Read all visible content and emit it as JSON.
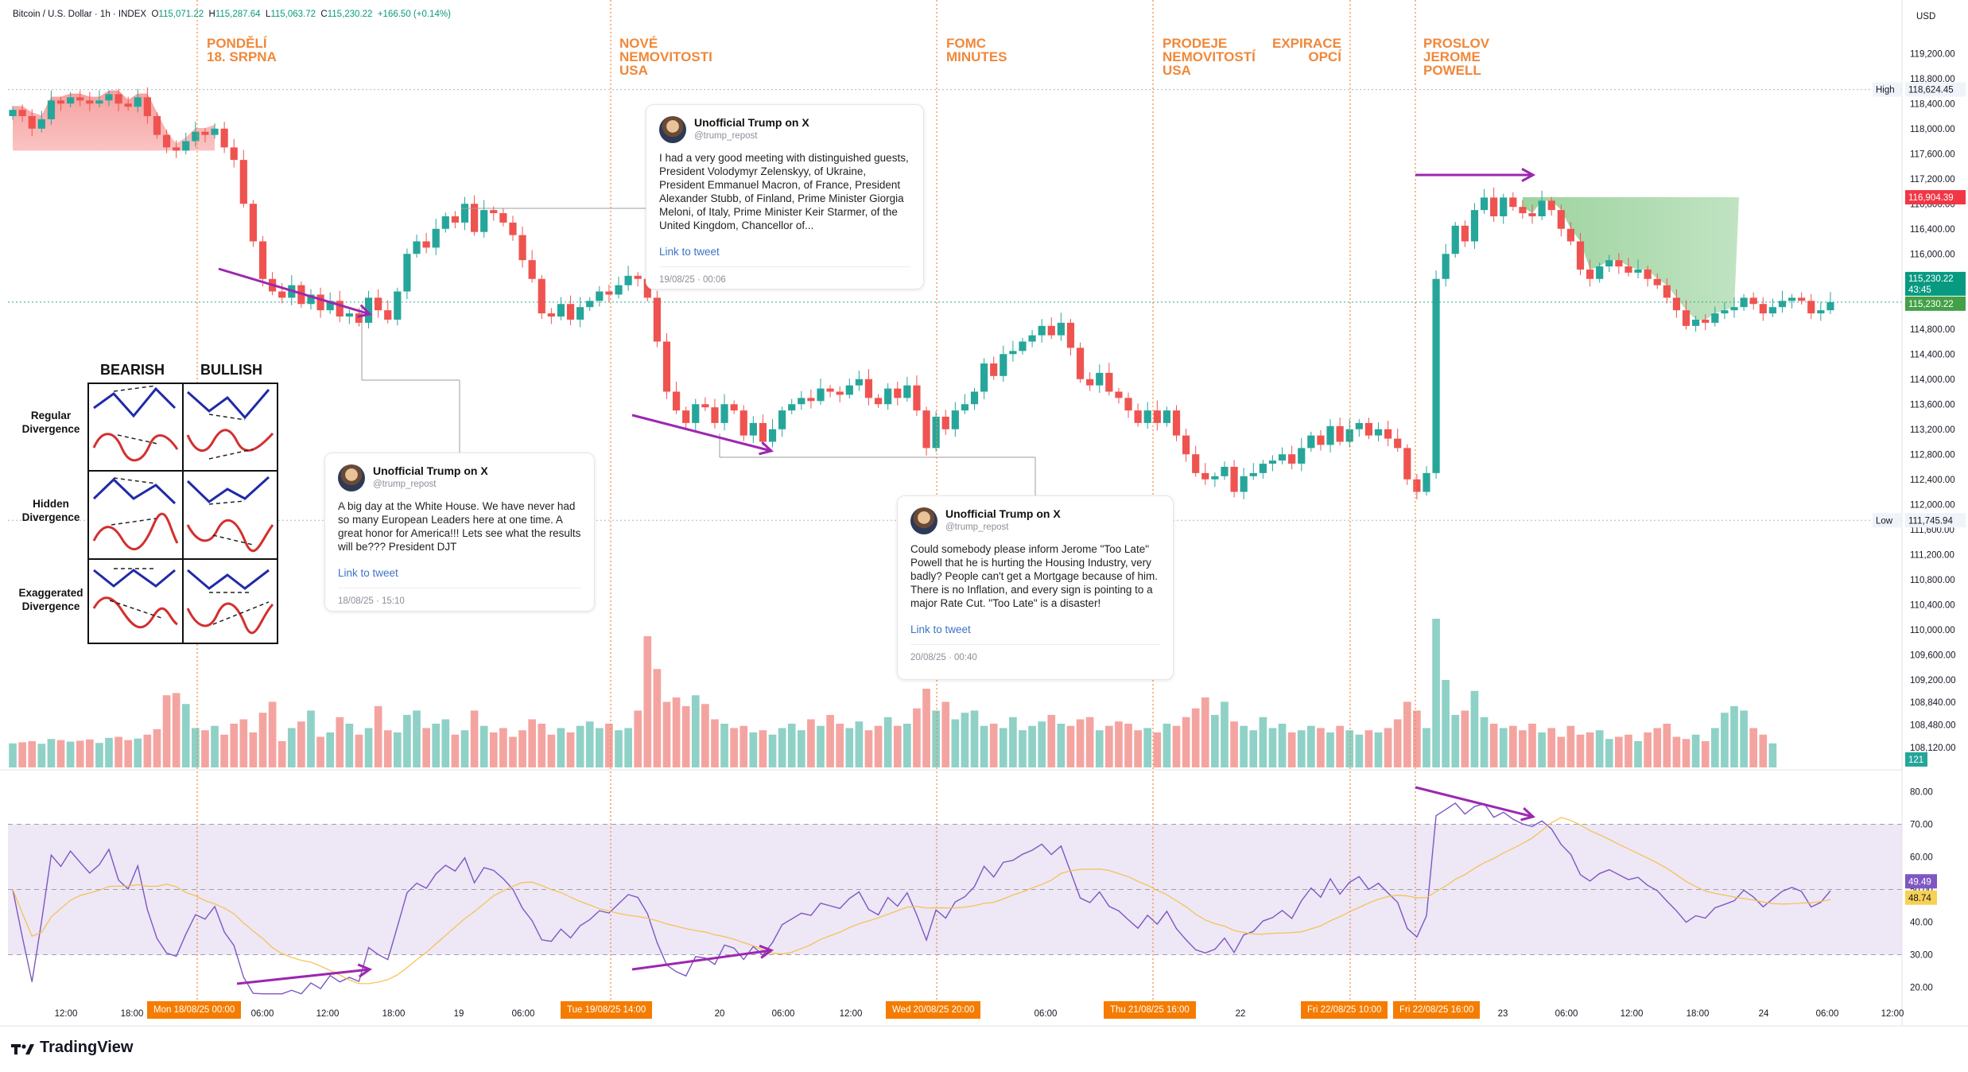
{
  "header": {
    "symbol": "Bitcoin / U.S. Dollar · 1h · INDEX",
    "o_label": "O",
    "o": "115,071.22",
    "h_label": "H",
    "h": "115,287.64",
    "l_label": "L",
    "l": "115,063.72",
    "c_label": "C",
    "c": "115,230.22",
    "change": "+166.50 (+0.14%)"
  },
  "currency": "USD",
  "brand": "TradingView",
  "events": [
    {
      "label": "PONDĚLÍ\n18. SRPNA"
    },
    {
      "label": "NOVÉ\nNEMOVITOSTI\nUSA"
    },
    {
      "label": "FOMC\nMINUTES"
    },
    {
      "label": "PRODEJE\nNEMOVITOSTÍ\nUSA"
    },
    {
      "label": "EXPIRACE\nOPCÍ"
    },
    {
      "label": "PROSLOV\nJEROME\nPOWELL"
    }
  ],
  "time_badges": [
    "Mon 18/08/25   00:00",
    "Tue 19/08/25   14:00",
    "Wed 20/08/25   20:00",
    "Thu 21/08/25   16:00",
    "Fri 22/08/25   10:00",
    "Fri 22/08/25   16:00"
  ],
  "tweets": [
    {
      "name": "Unofficial Trump on X",
      "handle": "@trump_repost",
      "text": "I had a very good meeting with distinguished guests, President Volodymyr Zelenskyy, of Ukraine, President Emmanuel Macron, of France, President Alexander Stubb, of Finland, Prime Minister Giorgia Meloni, of Italy, Prime Minister Keir Starmer, of the United Kingdom, Chancellor of...",
      "link": "Link to tweet",
      "date": "19/08/25 · 00:06"
    },
    {
      "name": "Unofficial Trump on X",
      "handle": "@trump_repost",
      "text": "A big day at the White House. We have never had so many European Leaders here at one time. A great honor for America!!! Lets see what the results will be??? President DJT",
      "link": "Link to tweet",
      "date": "18/08/25 · 15:10"
    },
    {
      "name": "Unofficial Trump on X",
      "handle": "@trump_repost",
      "text": "Could somebody please inform Jerome \"Too Late\" Powell that he is hurting the Housing Industry, very badly? People can't get a Mortgage because of him. There is no Inflation, and every sign is pointing to a major Rate Cut. \"Too Late\" is a disaster!",
      "link": "Link to tweet",
      "date": "20/08/25 · 00:40"
    }
  ],
  "divergence_table": {
    "col_bearish": "BEARISH",
    "col_bullish": "BULLISH",
    "rows": [
      "Regular\nDivergence",
      "Hidden\nDivergence",
      "Exaggerated\nDivergence"
    ]
  },
  "colors": {
    "up": "#26a69a",
    "down": "#ef5350",
    "up_vol": "#8fd1c6",
    "down_vol": "#f4a4a0",
    "event": "#f0883a",
    "rsi": "#7e57c2",
    "rsi_ma": "#f7c04a",
    "arrow": "#9c27b0",
    "rsi_band": "#ede7f6"
  },
  "chart_data": {
    "type": "candlestick",
    "price_axis": {
      "ylim": [
        107800,
        119800
      ],
      "ticks": [
        "119,200.00",
        "118,800.00",
        "118,400.00",
        "118,000.00",
        "117,600.00",
        "117,200.00",
        "116,800.00",
        "116,400.00",
        "116,000.00",
        "115,600.00",
        "115,200.00",
        "114,800.00",
        "114,400.00",
        "114,000.00",
        "113,600.00",
        "113,200.00",
        "112,800.00",
        "112,400.00",
        "112,000.00",
        "111,600.00",
        "111,200.00",
        "110,800.00",
        "110,400.00",
        "110,000.00",
        "109,600.00",
        "109,200.00",
        "108,840.00",
        "108,480.00",
        "108,120.00"
      ]
    },
    "labels": {
      "high": {
        "text": "High",
        "value": "118,624.45"
      },
      "low": {
        "text": "Low",
        "value": "111,745.94"
      },
      "last": {
        "value": "115,230.22",
        "countdown": "43:45"
      },
      "marker_red": "116,904.39",
      "marker_green": "115,230.22",
      "volume_last": "121"
    },
    "time_axis": [
      "12:00",
      "18:00",
      "06:00",
      "12:00",
      "18:00",
      "19",
      "06:00",
      "20",
      "06:00",
      "12:00",
      "06:00",
      "22",
      "23",
      "06:00",
      "12:00",
      "18:00",
      "24",
      "06:00",
      "12:00"
    ],
    "closes": [
      118300,
      118200,
      118000,
      118150,
      118450,
      118400,
      118500,
      118450,
      118400,
      118450,
      118550,
      118400,
      118350,
      118500,
      118200,
      117900,
      117700,
      117650,
      117800,
      117950,
      117900,
      118000,
      117700,
      117500,
      116800,
      116200,
      115600,
      115400,
      115300,
      115500,
      115200,
      115350,
      115100,
      115250,
      115000,
      115050,
      114900,
      115300,
      115100,
      114950,
      115400,
      116000,
      116200,
      116100,
      116400,
      116600,
      116500,
      116800,
      116350,
      116700,
      116650,
      116500,
      116300,
      115900,
      115600,
      115050,
      115000,
      115200,
      114950,
      115150,
      115250,
      115400,
      115350,
      115500,
      115650,
      115600,
      115300,
      114600,
      113800,
      113500,
      113300,
      113600,
      113550,
      113300,
      113600,
      113500,
      113100,
      113300,
      113000,
      113200,
      113500,
      113600,
      113700,
      113650,
      113850,
      113800,
      113750,
      113900,
      114000,
      113700,
      113600,
      113850,
      113700,
      113900,
      113500,
      112900,
      113400,
      113200,
      113500,
      113600,
      113800,
      114250,
      114050,
      114400,
      114450,
      114600,
      114700,
      114850,
      114700,
      114900,
      114500,
      114000,
      113900,
      114100,
      113800,
      113700,
      113500,
      113300,
      113500,
      113300,
      113500,
      113100,
      112800,
      112500,
      112400,
      112450,
      112600,
      112200,
      112450,
      112500,
      112650,
      112700,
      112800,
      112650,
      112900,
      113100,
      112950,
      113250,
      113000,
      113200,
      113300,
      113100,
      113200,
      113050,
      112900,
      112400,
      112200,
      112500,
      115600,
      116000,
      116450,
      116200,
      116700,
      116900,
      116600,
      116900,
      116750,
      116650,
      116600,
      116850,
      116700,
      116400,
      116200,
      115750,
      115600,
      115800,
      115900,
      115800,
      115700,
      115750,
      115600,
      115500,
      115300,
      115100,
      114850,
      114950,
      114900,
      115050,
      115100,
      115150,
      115300,
      115200,
      115050,
      115150,
      115250,
      115300,
      115250,
      115050,
      115100,
      115230
    ],
    "volume": [
      110,
      115,
      120,
      108,
      130,
      125,
      118,
      122,
      128,
      112,
      135,
      140,
      125,
      132,
      150,
      175,
      330,
      340,
      290,
      180,
      170,
      190,
      150,
      200,
      220,
      160,
      250,
      300,
      120,
      180,
      210,
      260,
      140,
      160,
      230,
      200,
      150,
      180,
      280,
      170,
      160,
      240,
      260,
      180,
      200,
      220,
      150,
      170,
      260,
      190,
      160,
      180,
      140,
      170,
      220,
      200,
      150,
      180,
      160,
      190,
      210,
      180,
      200,
      170,
      180,
      260,
      600,
      450,
      300,
      320,
      280,
      330,
      290,
      220,
      200,
      180,
      190,
      160,
      170,
      150,
      180,
      200,
      170,
      220,
      190,
      240,
      200,
      180,
      210,
      170,
      190,
      230,
      190,
      200,
      270,
      360,
      260,
      300,
      220,
      250,
      260,
      190,
      200,
      180,
      230,
      170,
      190,
      210,
      240,
      200,
      190,
      220,
      230,
      170,
      190,
      210,
      200,
      170,
      180,
      160,
      200,
      190,
      230,
      270,
      320,
      240,
      300,
      210,
      190,
      170,
      230,
      180,
      200,
      160,
      170,
      190,
      180,
      160,
      190,
      170,
      150,
      170,
      160,
      180,
      220,
      300,
      260,
      180,
      680,
      400,
      240,
      260,
      350,
      230,
      200,
      180,
      190,
      170,
      200,
      160,
      180,
      140,
      190,
      150,
      160,
      170,
      130,
      140,
      150,
      120,
      160,
      180,
      200,
      140,
      130,
      150,
      120,
      180,
      250,
      280,
      260,
      180,
      150,
      110
    ],
    "rsi": {
      "ylim": [
        15,
        85
      ],
      "ticks": [
        "80.00",
        "70.00",
        "60.00",
        "50.00",
        "40.00",
        "30.00",
        "20.00"
      ],
      "upper": 70,
      "lower": 30,
      "mid": 50,
      "last": "49.49",
      "ma_last": "48.74"
    }
  }
}
